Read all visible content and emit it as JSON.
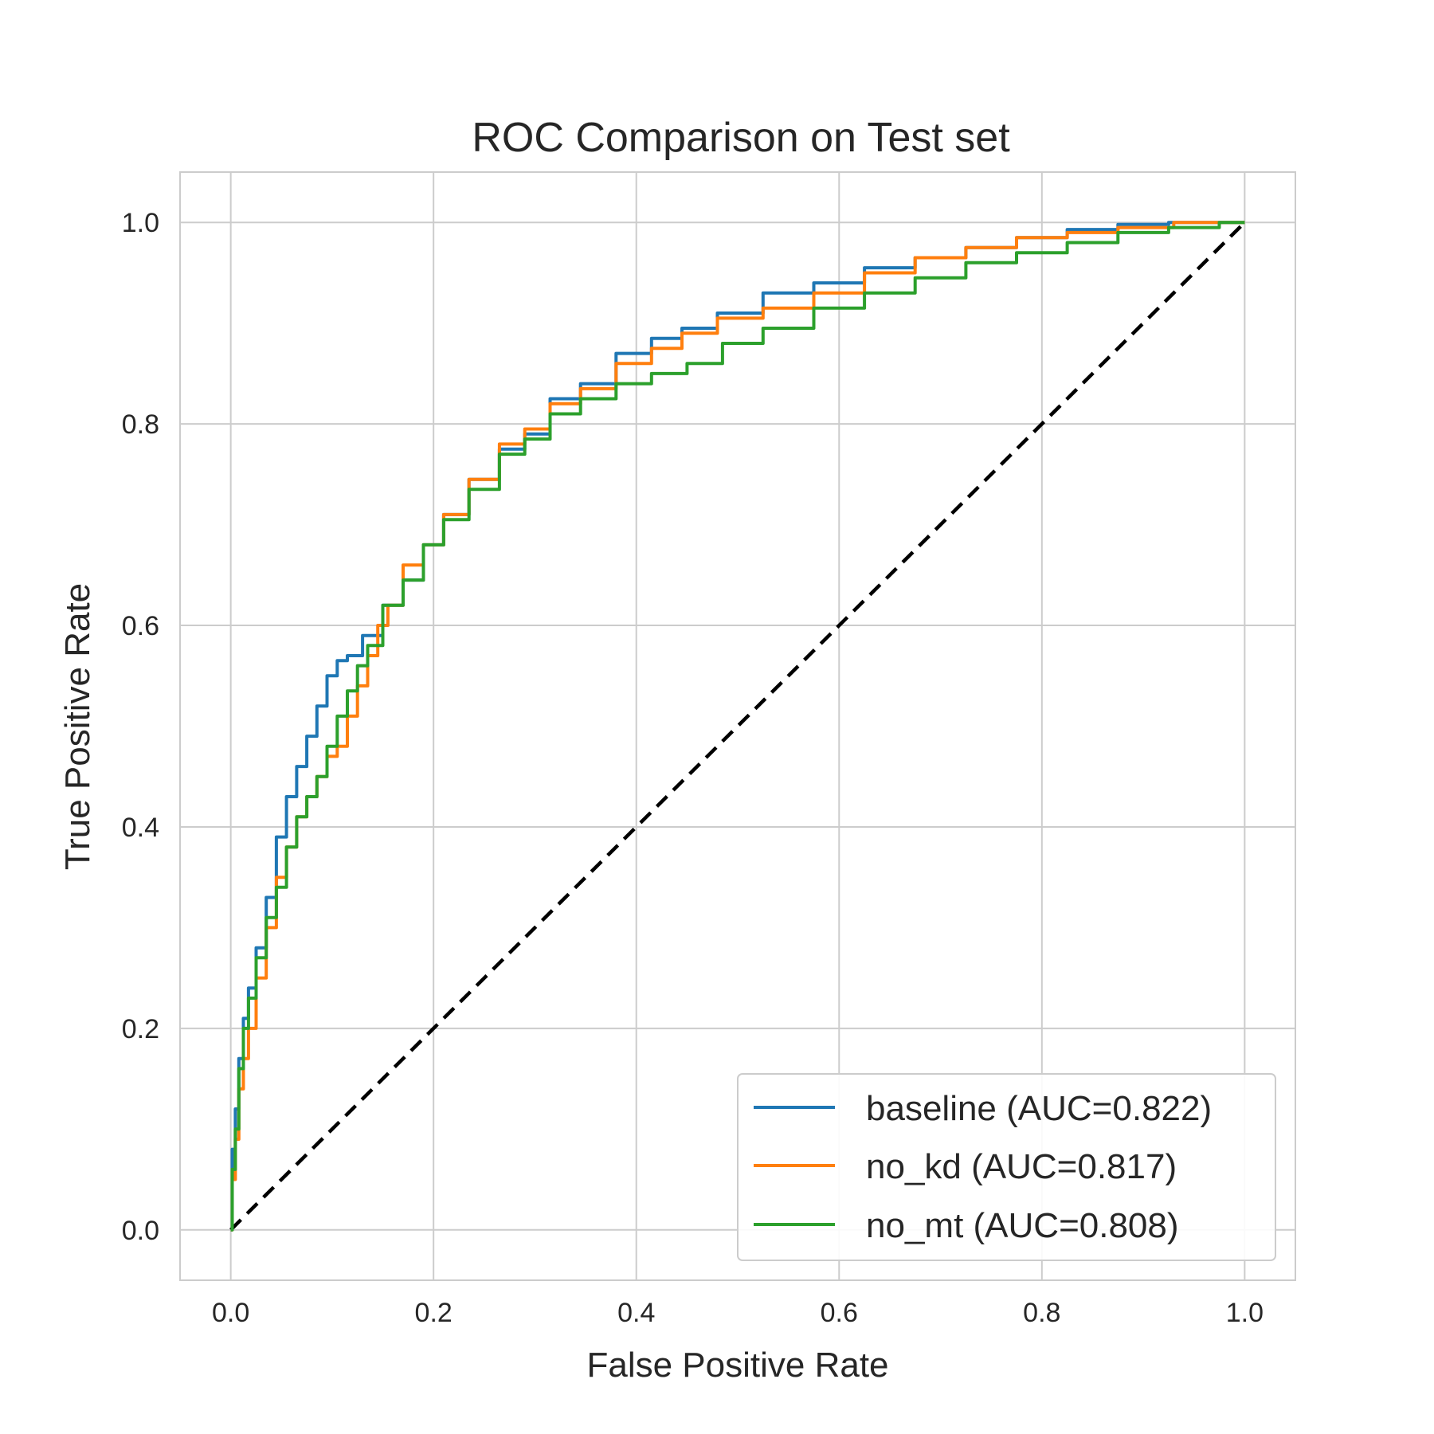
{
  "chart_data": {
    "type": "line",
    "title": "ROC Comparison on Test set",
    "xlabel": "False Positive Rate",
    "ylabel": "True Positive Rate",
    "xlim": [
      -0.05,
      1.05
    ],
    "ylim": [
      -0.05,
      1.05
    ],
    "xticks": [
      "0.0",
      "0.2",
      "0.4",
      "0.6",
      "0.8",
      "1.0"
    ],
    "yticks": [
      "0.0",
      "0.2",
      "0.4",
      "0.6",
      "0.8",
      "1.0"
    ],
    "grid": true,
    "legend_position": "lower-right",
    "reference_line": {
      "x": [
        0,
        1
      ],
      "y": [
        0,
        1
      ],
      "color": "#000000",
      "style": "dashed"
    },
    "series": [
      {
        "name": "baseline (AUC=0.822)",
        "color": "#1f77b4",
        "x": [
          0,
          0.003,
          0.006,
          0.01,
          0.015,
          0.02,
          0.03,
          0.04,
          0.05,
          0.06,
          0.07,
          0.08,
          0.09,
          0.1,
          0.11,
          0.12,
          0.14,
          0.16,
          0.18,
          0.2,
          0.22,
          0.25,
          0.28,
          0.3,
          0.33,
          0.36,
          0.4,
          0.43,
          0.46,
          0.5,
          0.55,
          0.6,
          0.65,
          0.7,
          0.75,
          0.8,
          0.85,
          0.9,
          0.95,
          1.0
        ],
        "y": [
          0,
          0.08,
          0.12,
          0.17,
          0.21,
          0.24,
          0.28,
          0.33,
          0.39,
          0.43,
          0.46,
          0.49,
          0.52,
          0.55,
          0.565,
          0.57,
          0.59,
          0.62,
          0.645,
          0.68,
          0.71,
          0.745,
          0.775,
          0.79,
          0.825,
          0.84,
          0.87,
          0.885,
          0.895,
          0.91,
          0.93,
          0.94,
          0.955,
          0.965,
          0.975,
          0.985,
          0.993,
          0.998,
          1.0,
          1.0
        ]
      },
      {
        "name": "no_kd (AUC=0.817)",
        "color": "#ff7f0e",
        "x": [
          0,
          0.003,
          0.006,
          0.01,
          0.015,
          0.02,
          0.03,
          0.04,
          0.05,
          0.06,
          0.07,
          0.08,
          0.09,
          0.1,
          0.11,
          0.12,
          0.13,
          0.14,
          0.15,
          0.16,
          0.18,
          0.2,
          0.22,
          0.25,
          0.28,
          0.3,
          0.33,
          0.36,
          0.4,
          0.43,
          0.46,
          0.5,
          0.55,
          0.6,
          0.65,
          0.7,
          0.75,
          0.8,
          0.85,
          0.9,
          0.96,
          1.0
        ],
        "y": [
          0,
          0.05,
          0.09,
          0.14,
          0.17,
          0.2,
          0.25,
          0.3,
          0.35,
          0.38,
          0.41,
          0.43,
          0.45,
          0.47,
          0.48,
          0.51,
          0.54,
          0.57,
          0.6,
          0.62,
          0.66,
          0.68,
          0.71,
          0.745,
          0.78,
          0.795,
          0.82,
          0.835,
          0.86,
          0.875,
          0.89,
          0.905,
          0.915,
          0.93,
          0.95,
          0.965,
          0.975,
          0.985,
          0.99,
          0.995,
          1.0,
          1.0
        ]
      },
      {
        "name": "no_mt (AUC=0.808)",
        "color": "#2ca02c",
        "x": [
          0,
          0.003,
          0.006,
          0.01,
          0.015,
          0.02,
          0.03,
          0.04,
          0.05,
          0.06,
          0.07,
          0.08,
          0.09,
          0.1,
          0.11,
          0.12,
          0.13,
          0.14,
          0.16,
          0.18,
          0.2,
          0.22,
          0.25,
          0.28,
          0.3,
          0.33,
          0.36,
          0.4,
          0.43,
          0.47,
          0.5,
          0.55,
          0.6,
          0.65,
          0.7,
          0.75,
          0.8,
          0.85,
          0.9,
          0.95,
          1.0
        ],
        "y": [
          0,
          0.06,
          0.1,
          0.16,
          0.2,
          0.23,
          0.27,
          0.31,
          0.34,
          0.38,
          0.41,
          0.43,
          0.45,
          0.48,
          0.51,
          0.535,
          0.56,
          0.58,
          0.62,
          0.645,
          0.68,
          0.705,
          0.735,
          0.77,
          0.785,
          0.81,
          0.825,
          0.84,
          0.85,
          0.86,
          0.88,
          0.895,
          0.915,
          0.93,
          0.945,
          0.96,
          0.97,
          0.98,
          0.99,
          0.995,
          1.0
        ]
      }
    ]
  }
}
